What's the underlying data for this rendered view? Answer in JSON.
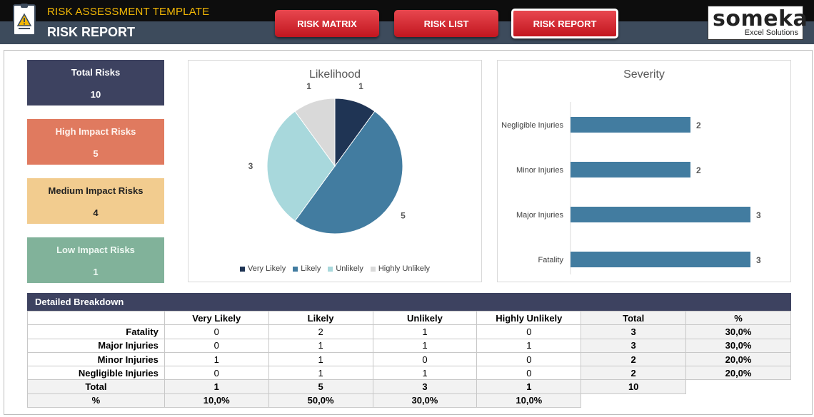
{
  "header": {
    "subtitle": "RISK ASSESSMENT TEMPLATE",
    "title": "RISK REPORT",
    "nav": [
      {
        "label": "RISK MATRIX"
      },
      {
        "label": "RISK LIST"
      },
      {
        "label": "RISK REPORT",
        "active": true
      }
    ],
    "brand_name": "someka",
    "brand_tag": "Excel Solutions",
    "accent_color": "#d82b34"
  },
  "cards": {
    "total": {
      "label": "Total Risks",
      "value": "10",
      "color": "#3d4260"
    },
    "high": {
      "label": "High Impact Risks",
      "value": "5",
      "color": "#e07a5f"
    },
    "medium": {
      "label": "Medium Impact Risks",
      "value": "4",
      "color": "#f2cc8f"
    },
    "low": {
      "label": "Low Impact Risks",
      "value": "1",
      "color": "#81b29a"
    }
  },
  "chart_data": [
    {
      "type": "pie",
      "title": "Likelihood",
      "categories": [
        "Very Likely",
        "Likely",
        "Unlikely",
        "Highly Unlikely"
      ],
      "values": [
        1,
        5,
        3,
        1
      ],
      "colors": [
        "#1f3454",
        "#427ca0",
        "#a8d8dc",
        "#d9d9d9"
      ],
      "legend": "bottom"
    },
    {
      "type": "bar",
      "orientation": "horizontal",
      "title": "Severity",
      "categories": [
        "Negligible Injuries",
        "Minor Injuries",
        "Major Injuries",
        "Fatality"
      ],
      "values": [
        2,
        2,
        3,
        3
      ],
      "color": "#427ca0",
      "grid": false
    }
  ],
  "table": {
    "title": "Detailed Breakdown",
    "columns": [
      "Very Likely",
      "Likely",
      "Unlikely",
      "Highly Unlikely",
      "Total",
      "%"
    ],
    "rows": [
      {
        "label": "Fatality",
        "cells": [
          "0",
          "2",
          "1",
          "0"
        ],
        "total": "3",
        "pct": "30,0%"
      },
      {
        "label": "Major Injuries",
        "cells": [
          "0",
          "1",
          "1",
          "1"
        ],
        "total": "3",
        "pct": "30,0%"
      },
      {
        "label": "Minor Injuries",
        "cells": [
          "1",
          "1",
          "0",
          "0"
        ],
        "total": "2",
        "pct": "20,0%"
      },
      {
        "label": "Negligible Injuries",
        "cells": [
          "0",
          "1",
          "1",
          "0"
        ],
        "total": "2",
        "pct": "20,0%"
      }
    ],
    "total_row": {
      "label": "Total",
      "cells": [
        "1",
        "5",
        "3",
        "1"
      ],
      "total": "10"
    },
    "pct_row": {
      "label": "%",
      "cells": [
        "10,0%",
        "50,0%",
        "30,0%",
        "10,0%"
      ]
    }
  }
}
